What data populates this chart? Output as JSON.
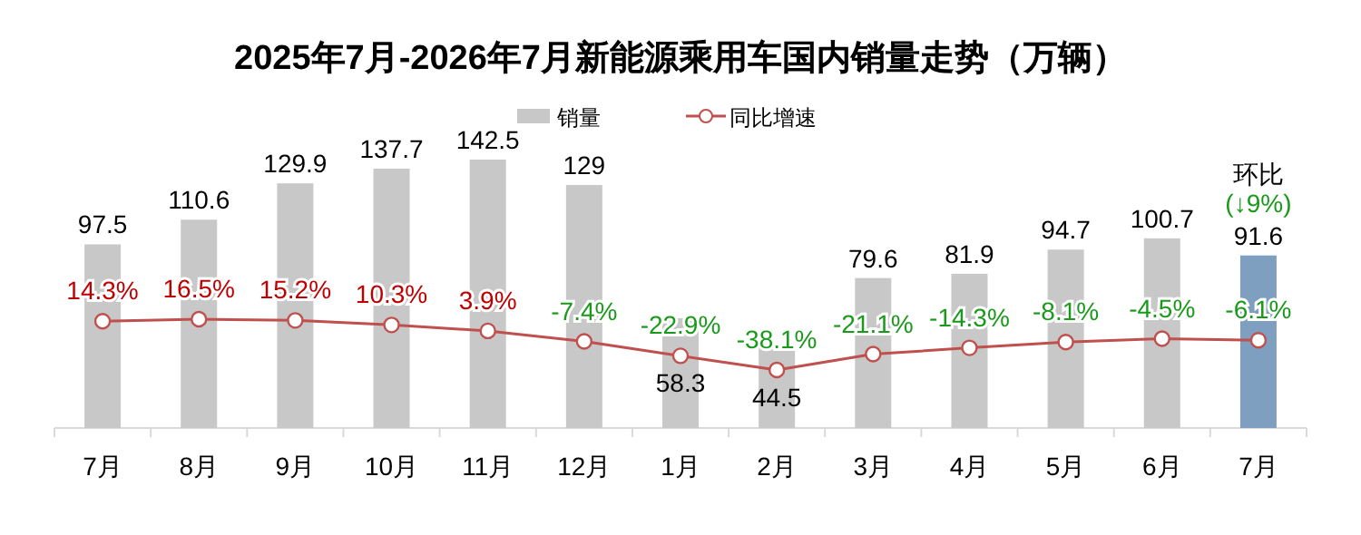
{
  "chart_data": {
    "type": "bar",
    "title": "2025年7月-2026年7月新能源乘用车国内销量走势（万辆）",
    "legend": "top",
    "categories": [
      "7月",
      "8月",
      "9月",
      "10月",
      "11月",
      "12月",
      "1月",
      "2月",
      "3月",
      "4月",
      "5月",
      "6月",
      "7月"
    ],
    "data_labels": true,
    "series": [
      {
        "name": "销量",
        "color": "#c8c8c8",
        "colors": [
          "#c8c8c8",
          "#c8c8c8",
          "#c8c8c8",
          "#c8c8c8",
          "#c8c8c8",
          "#c8c8c8",
          "#c8c8c8",
          "#c8c8c8",
          "#c8c8c8",
          "#c8c8c8",
          "#c8c8c8",
          "#c8c8c8",
          "#7f9fc0"
        ],
        "values": [
          97.5,
          110.6,
          129.9,
          137.7,
          142.5,
          129,
          58.3,
          44.5,
          79.6,
          81.9,
          94.7,
          100.7,
          91.6
        ]
      },
      {
        "name": "同比增速",
        "type": "line",
        "axis": "y2",
        "color": "#c0504d",
        "marker": "circle",
        "value_labels": [
          "14.3%",
          "16.5%",
          "15.2%",
          "10.3%",
          "3.9%",
          "-7.4%",
          "-22.9%",
          "-38.1%",
          "-21.1%",
          "-14.3%",
          "-8.1%",
          "-4.5%",
          "-6.1%"
        ],
        "values": [
          14.3,
          16.5,
          15.2,
          10.3,
          3.9,
          -7.4,
          -22.9,
          -38.1,
          -21.1,
          -14.3,
          -8.1,
          -4.5,
          -6.1
        ]
      }
    ],
    "annotations": [
      "环比",
      "(↓9%)"
    ]
  }
}
